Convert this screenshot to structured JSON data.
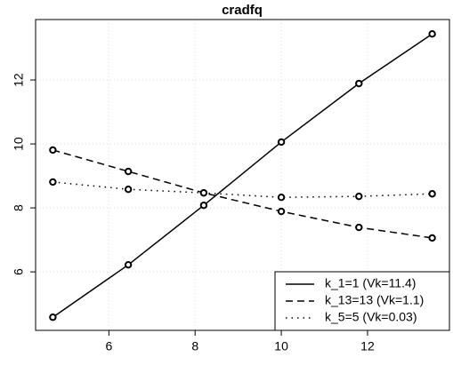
{
  "chart_data": {
    "type": "line",
    "title": "cradfq",
    "x": [
      4.7,
      6.45,
      8.2,
      10.0,
      11.8,
      13.5
    ],
    "series": [
      {
        "name": "k_1=1 (Vk=11.4)",
        "color": "#000000",
        "dash": "solid",
        "values": [
          4.58,
          6.22,
          8.08,
          10.06,
          11.89,
          13.44
        ]
      },
      {
        "name": "k_13=13 (Vk=1.1)",
        "color": "#000000",
        "dash": "dashed",
        "values": [
          9.81,
          9.14,
          8.47,
          7.89,
          7.39,
          7.06
        ]
      },
      {
        "name": "k_5=5 (Vk=0.03)",
        "color": "#000000",
        "dash": "dotted",
        "values": [
          8.81,
          8.58,
          8.47,
          8.33,
          8.36,
          8.44
        ]
      }
    ],
    "xlim": [
      4.3,
      13.9
    ],
    "xticks": [
      6,
      8,
      10,
      12
    ],
    "ylim": [
      4.17,
      13.89
    ],
    "yticks": [
      6,
      8,
      10,
      12
    ],
    "grid": true,
    "legend": "bottom-right"
  }
}
